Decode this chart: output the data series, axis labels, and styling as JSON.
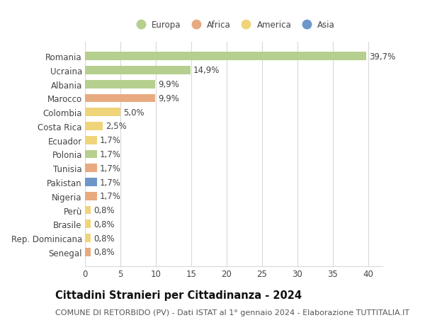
{
  "countries": [
    "Romania",
    "Ucraina",
    "Albania",
    "Marocco",
    "Colombia",
    "Costa Rica",
    "Ecuador",
    "Polonia",
    "Tunisia",
    "Pakistan",
    "Nigeria",
    "Perù",
    "Brasile",
    "Rep. Dominicana",
    "Senegal"
  ],
  "values": [
    39.7,
    14.9,
    9.9,
    9.9,
    5.0,
    2.5,
    1.7,
    1.7,
    1.7,
    1.7,
    1.7,
    0.8,
    0.8,
    0.8,
    0.8
  ],
  "labels": [
    "39,7%",
    "14,9%",
    "9,9%",
    "9,9%",
    "5,0%",
    "2,5%",
    "1,7%",
    "1,7%",
    "1,7%",
    "1,7%",
    "1,7%",
    "0,8%",
    "0,8%",
    "0,8%",
    "0,8%"
  ],
  "continents": [
    "Europa",
    "Europa",
    "Europa",
    "Africa",
    "America",
    "America",
    "America",
    "Europa",
    "Africa",
    "Asia",
    "Africa",
    "America",
    "America",
    "America",
    "Africa"
  ],
  "colors": {
    "Europa": "#b5cf8e",
    "Africa": "#e8aa80",
    "America": "#f0d47a",
    "Asia": "#6d97c9"
  },
  "legend_order": [
    "Europa",
    "Africa",
    "America",
    "Asia"
  ],
  "legend_colors": [
    "#b5cf8e",
    "#e8aa80",
    "#f0d47a",
    "#6d97c9"
  ],
  "title": "Cittadini Stranieri per Cittadinanza - 2024",
  "subtitle": "COMUNE DI RETORBIDO (PV) - Dati ISTAT al 1° gennaio 2024 - Elaborazione TUTTITALIA.IT",
  "xlim": [
    0,
    42
  ],
  "xticks": [
    0,
    5,
    10,
    15,
    20,
    25,
    30,
    35,
    40
  ],
  "background_color": "#ffffff",
  "grid_color": "#d8d8d8",
  "bar_height": 0.6,
  "label_fontsize": 8.5,
  "tick_fontsize": 8.5,
  "title_fontsize": 10.5,
  "subtitle_fontsize": 8.0
}
